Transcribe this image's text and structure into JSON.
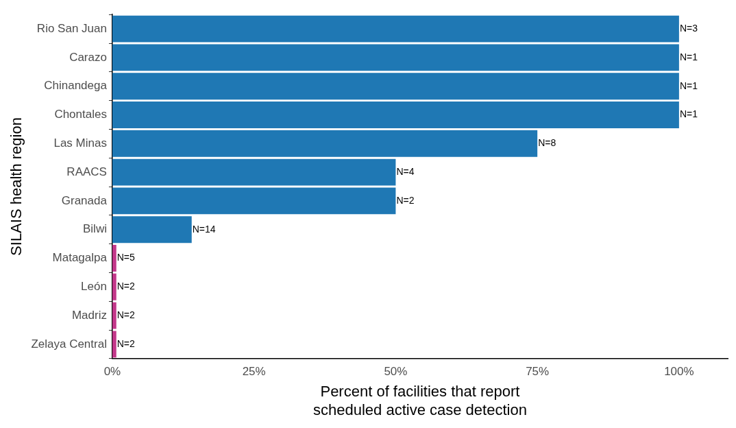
{
  "chart_data": {
    "type": "bar",
    "orientation": "horizontal",
    "xlabel": "Percent of facilities that report\nscheduled active case detection",
    "ylabel": "SILAIS health region",
    "categories": [
      "Rio San Juan",
      "Carazo",
      "Chinandega",
      "Chontales",
      "Las Minas",
      "RAACS",
      "Granada",
      "Bilwi",
      "Matagalpa",
      "León",
      "Madriz",
      "Zelaya Central"
    ],
    "values": [
      100,
      100,
      100,
      100,
      75,
      50,
      50,
      14,
      0.7,
      0.7,
      0.7,
      0.7
    ],
    "colors": [
      "#1f78b4",
      "#1f78b4",
      "#1f78b4",
      "#1f78b4",
      "#1f78b4",
      "#1f78b4",
      "#1f78b4",
      "#1f78b4",
      "#c2378a",
      "#c2378a",
      "#c2378a",
      "#c2378a"
    ],
    "annotations": [
      {
        "text": "N=3",
        "x": 100,
        "y": "Rio San Juan"
      },
      {
        "text": "N=1",
        "x": 100,
        "y": "Carazo"
      },
      {
        "text": "N=1",
        "x": 100,
        "y": "Chinandega"
      },
      {
        "text": "N=1",
        "x": 100,
        "y": "Chontales"
      },
      {
        "text": "N=8",
        "x": 75,
        "y": "Las Minas"
      },
      {
        "text": "N=4",
        "x": 50,
        "y": "RAACS"
      },
      {
        "text": "N=2",
        "x": 50,
        "y": "Granada"
      },
      {
        "text": "N=14",
        "x": 14,
        "y": "Bilwi"
      },
      {
        "text": "N=5",
        "x": 0.7,
        "y": "Matagalpa"
      },
      {
        "text": "N=2",
        "x": 0.7,
        "y": "León"
      },
      {
        "text": "N=2",
        "x": 0.7,
        "y": "Madriz"
      },
      {
        "text": "N=2",
        "x": 0.7,
        "y": "Zelaya Central"
      }
    ],
    "xlim": [
      0,
      108.6
    ],
    "xticks": [
      {
        "value": 0,
        "label": "0%"
      },
      {
        "value": 25,
        "label": "25%"
      },
      {
        "value": 50,
        "label": "50%"
      },
      {
        "value": 75,
        "label": "75%"
      },
      {
        "value": 100,
        "label": "100%"
      }
    ],
    "grid": false,
    "legend": false
  }
}
